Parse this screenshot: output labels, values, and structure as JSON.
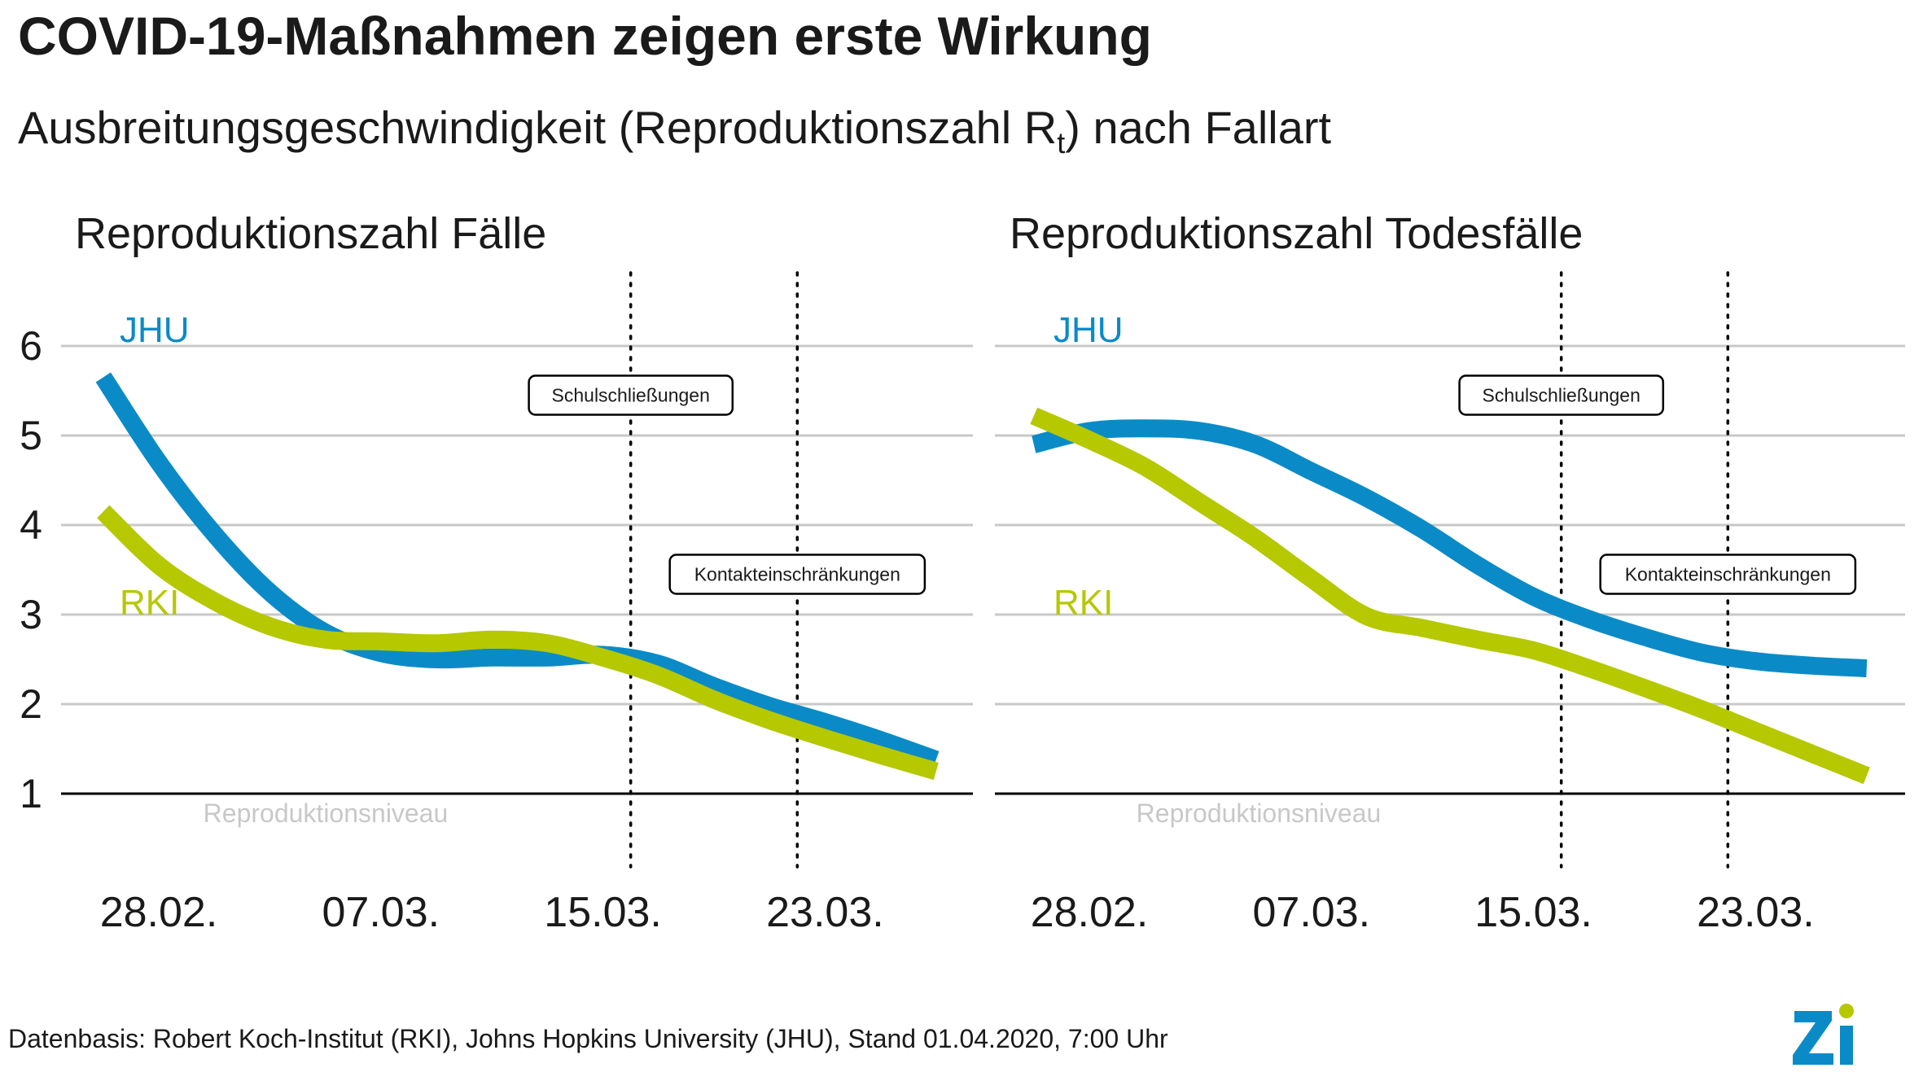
{
  "header": {
    "title": "COVID-19-Maßnahmen zeigen erste Wirkung",
    "subtitle_main": "Ausbreitungsgeschwindigkeit (Reproduktionszahl R",
    "subtitle_sub": "t",
    "subtitle_end": ") nach Fallart"
  },
  "footer": {
    "source": "Datenbasis: Robert Koch-Institut (RKI), Johns Hopkins University (JHU), Stand 01.04.2020, 7:00 Uhr"
  },
  "colors": {
    "jhu": "#0a8bc7",
    "rki": "#b5c800",
    "grid": "#c8c8c8",
    "reference_label": "#c8c8c8",
    "logo": "#0a8bc7"
  },
  "chart_data": [
    {
      "type": "line",
      "title": "Reproduktionszahl Fälle",
      "x_ticks": [
        "28.02.",
        "07.03.",
        "15.03.",
        "23.03."
      ],
      "x_tick_dates": [
        "2020-02-28",
        "2020-03-07",
        "2020-03-15",
        "2020-03-23"
      ],
      "y_ticks": [
        1,
        2,
        3,
        4,
        5,
        6
      ],
      "ylim": [
        1,
        6
      ],
      "reference_label": "Reproduktionsniveau",
      "series": [
        {
          "name": "JHU",
          "color": "#0a8bc7",
          "x": [
            "2020-02-26",
            "2020-02-28",
            "2020-03-01",
            "2020-03-03",
            "2020-03-05",
            "2020-03-07",
            "2020-03-09",
            "2020-03-11",
            "2020-03-13",
            "2020-03-15",
            "2020-03-17",
            "2020-03-19",
            "2020-03-21",
            "2020-03-23",
            "2020-03-25",
            "2020-03-27"
          ],
          "y": [
            5.65,
            4.7,
            3.9,
            3.25,
            2.8,
            2.57,
            2.5,
            2.52,
            2.52,
            2.55,
            2.45,
            2.2,
            1.98,
            1.8,
            1.6,
            1.38
          ]
        },
        {
          "name": "RKI",
          "color": "#b5c800",
          "x": [
            "2020-02-26",
            "2020-02-28",
            "2020-03-01",
            "2020-03-03",
            "2020-03-05",
            "2020-03-07",
            "2020-03-09",
            "2020-03-11",
            "2020-03-13",
            "2020-03-15",
            "2020-03-17",
            "2020-03-19",
            "2020-03-21",
            "2020-03-23",
            "2020-03-25",
            "2020-03-27"
          ],
          "y": [
            4.15,
            3.55,
            3.15,
            2.87,
            2.72,
            2.7,
            2.68,
            2.72,
            2.68,
            2.52,
            2.32,
            2.05,
            1.82,
            1.62,
            1.43,
            1.25
          ]
        }
      ],
      "annotations": [
        {
          "date": "2020-03-16",
          "label": "Schulschließungen",
          "label_y": 5.45
        },
        {
          "date": "2020-03-22",
          "label": "Kontakteinschränkungen",
          "label_y": 3.45
        }
      ]
    },
    {
      "type": "line",
      "title": "Reproduktionszahl Todesfälle",
      "x_ticks": [
        "28.02.",
        "07.03.",
        "15.03.",
        "23.03."
      ],
      "x_tick_dates": [
        "2020-02-28",
        "2020-03-07",
        "2020-03-15",
        "2020-03-23"
      ],
      "y_ticks": [
        1,
        2,
        3,
        4,
        5,
        6
      ],
      "ylim": [
        1,
        6
      ],
      "reference_label": "Reproduktionsniveau",
      "series": [
        {
          "name": "JHU",
          "color": "#0a8bc7",
          "x": [
            "2020-02-26",
            "2020-02-28",
            "2020-03-01",
            "2020-03-03",
            "2020-03-05",
            "2020-03-07",
            "2020-03-09",
            "2020-03-11",
            "2020-03-13",
            "2020-03-15",
            "2020-03-17",
            "2020-03-19",
            "2020-03-21",
            "2020-03-23",
            "2020-03-25",
            "2020-03-27"
          ],
          "y": [
            4.9,
            5.05,
            5.08,
            5.05,
            4.9,
            4.6,
            4.3,
            3.95,
            3.55,
            3.2,
            2.95,
            2.75,
            2.58,
            2.48,
            2.43,
            2.4
          ]
        },
        {
          "name": "RKI",
          "color": "#b5c800",
          "x": [
            "2020-02-26",
            "2020-02-28",
            "2020-03-01",
            "2020-03-03",
            "2020-03-05",
            "2020-03-07",
            "2020-03-09",
            "2020-03-11",
            "2020-03-13",
            "2020-03-15",
            "2020-03-17",
            "2020-03-19",
            "2020-03-21",
            "2020-03-23",
            "2020-03-25",
            "2020-03-27"
          ],
          "y": [
            5.22,
            4.95,
            4.65,
            4.25,
            3.85,
            3.4,
            2.98,
            2.85,
            2.72,
            2.6,
            2.4,
            2.18,
            1.95,
            1.7,
            1.45,
            1.2
          ]
        }
      ],
      "annotations": [
        {
          "date": "2020-03-16",
          "label": "Schulschließungen",
          "label_y": 5.45
        },
        {
          "date": "2020-03-22",
          "label": "Kontakteinschränkungen",
          "label_y": 3.45
        }
      ]
    }
  ]
}
